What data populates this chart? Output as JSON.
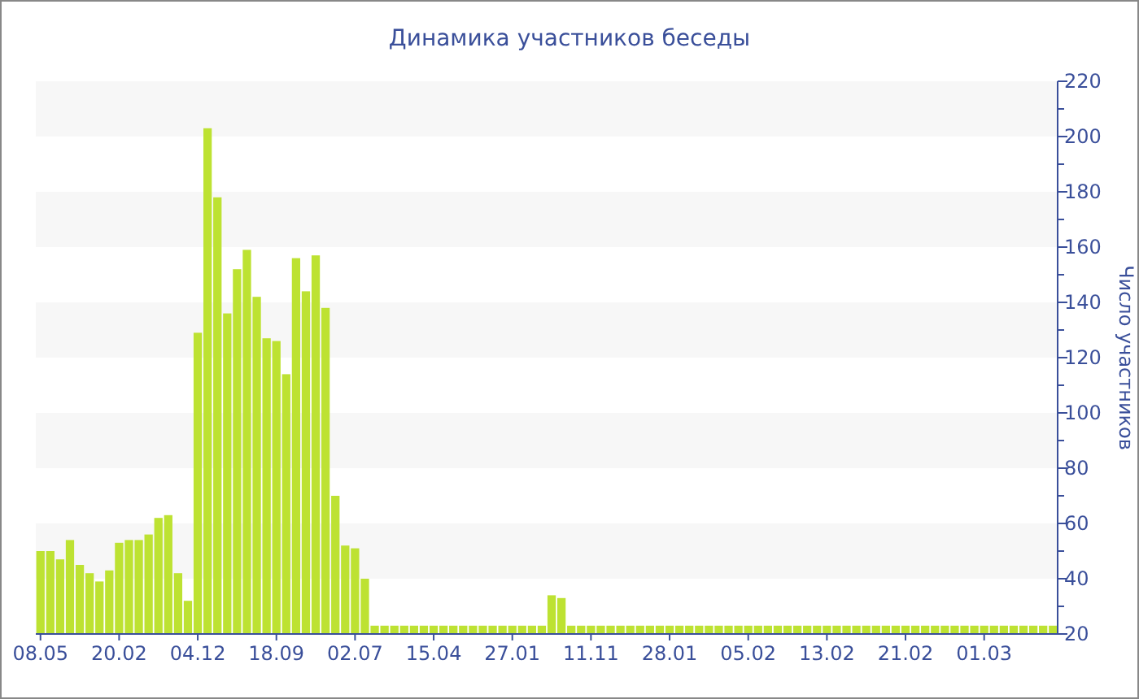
{
  "chart_data": {
    "type": "bar",
    "title": "Динамика участников беседы",
    "ylabel": "Число участников",
    "categories": [
      "08.05",
      null,
      null,
      null,
      null,
      null,
      null,
      null,
      "20.02",
      null,
      null,
      null,
      null,
      null,
      null,
      null,
      "04.12",
      null,
      null,
      null,
      null,
      null,
      null,
      null,
      "18.09",
      null,
      null,
      null,
      null,
      null,
      null,
      null,
      "02.07",
      null,
      null,
      null,
      null,
      null,
      null,
      null,
      "15.04",
      null,
      null,
      null,
      null,
      null,
      null,
      null,
      "27.01",
      null,
      null,
      null,
      null,
      null,
      null,
      null,
      "11.11",
      null,
      null,
      null,
      null,
      null,
      null,
      null,
      "28.01",
      null,
      null,
      null,
      null,
      null,
      null,
      null,
      "05.02",
      null,
      null,
      null,
      null,
      null,
      null,
      null,
      "13.02",
      null,
      null,
      null,
      null,
      null,
      null,
      null,
      "21.02",
      null,
      null,
      null,
      null,
      null,
      null,
      null,
      "01.03",
      null,
      null,
      null,
      null,
      null,
      null,
      null
    ],
    "values": [
      50,
      50,
      47,
      54,
      45,
      42,
      39,
      43,
      53,
      54,
      54,
      56,
      62,
      63,
      42,
      32,
      129,
      203,
      178,
      136,
      152,
      159,
      142,
      127,
      126,
      114,
      156,
      144,
      157,
      138,
      70,
      52,
      51,
      40,
      23,
      23,
      23,
      23,
      23,
      23,
      23,
      23,
      23,
      23,
      23,
      23,
      23,
      23,
      23,
      23,
      23,
      23,
      34,
      33,
      23,
      23,
      23,
      23,
      23,
      23,
      23,
      23,
      23,
      23,
      23,
      23,
      23,
      23,
      23,
      23,
      23,
      23,
      23,
      23,
      23,
      23,
      23,
      23,
      23,
      23,
      23,
      23,
      23,
      23,
      23,
      23,
      23,
      23,
      23,
      23,
      23,
      23,
      23,
      23,
      23,
      23,
      23,
      23,
      23,
      23,
      23,
      23,
      23,
      23
    ],
    "color": "#bde232",
    "ylim": [
      20,
      220
    ],
    "yticks": [
      20,
      40,
      60,
      80,
      100,
      120,
      140,
      160,
      180,
      200,
      220
    ]
  }
}
